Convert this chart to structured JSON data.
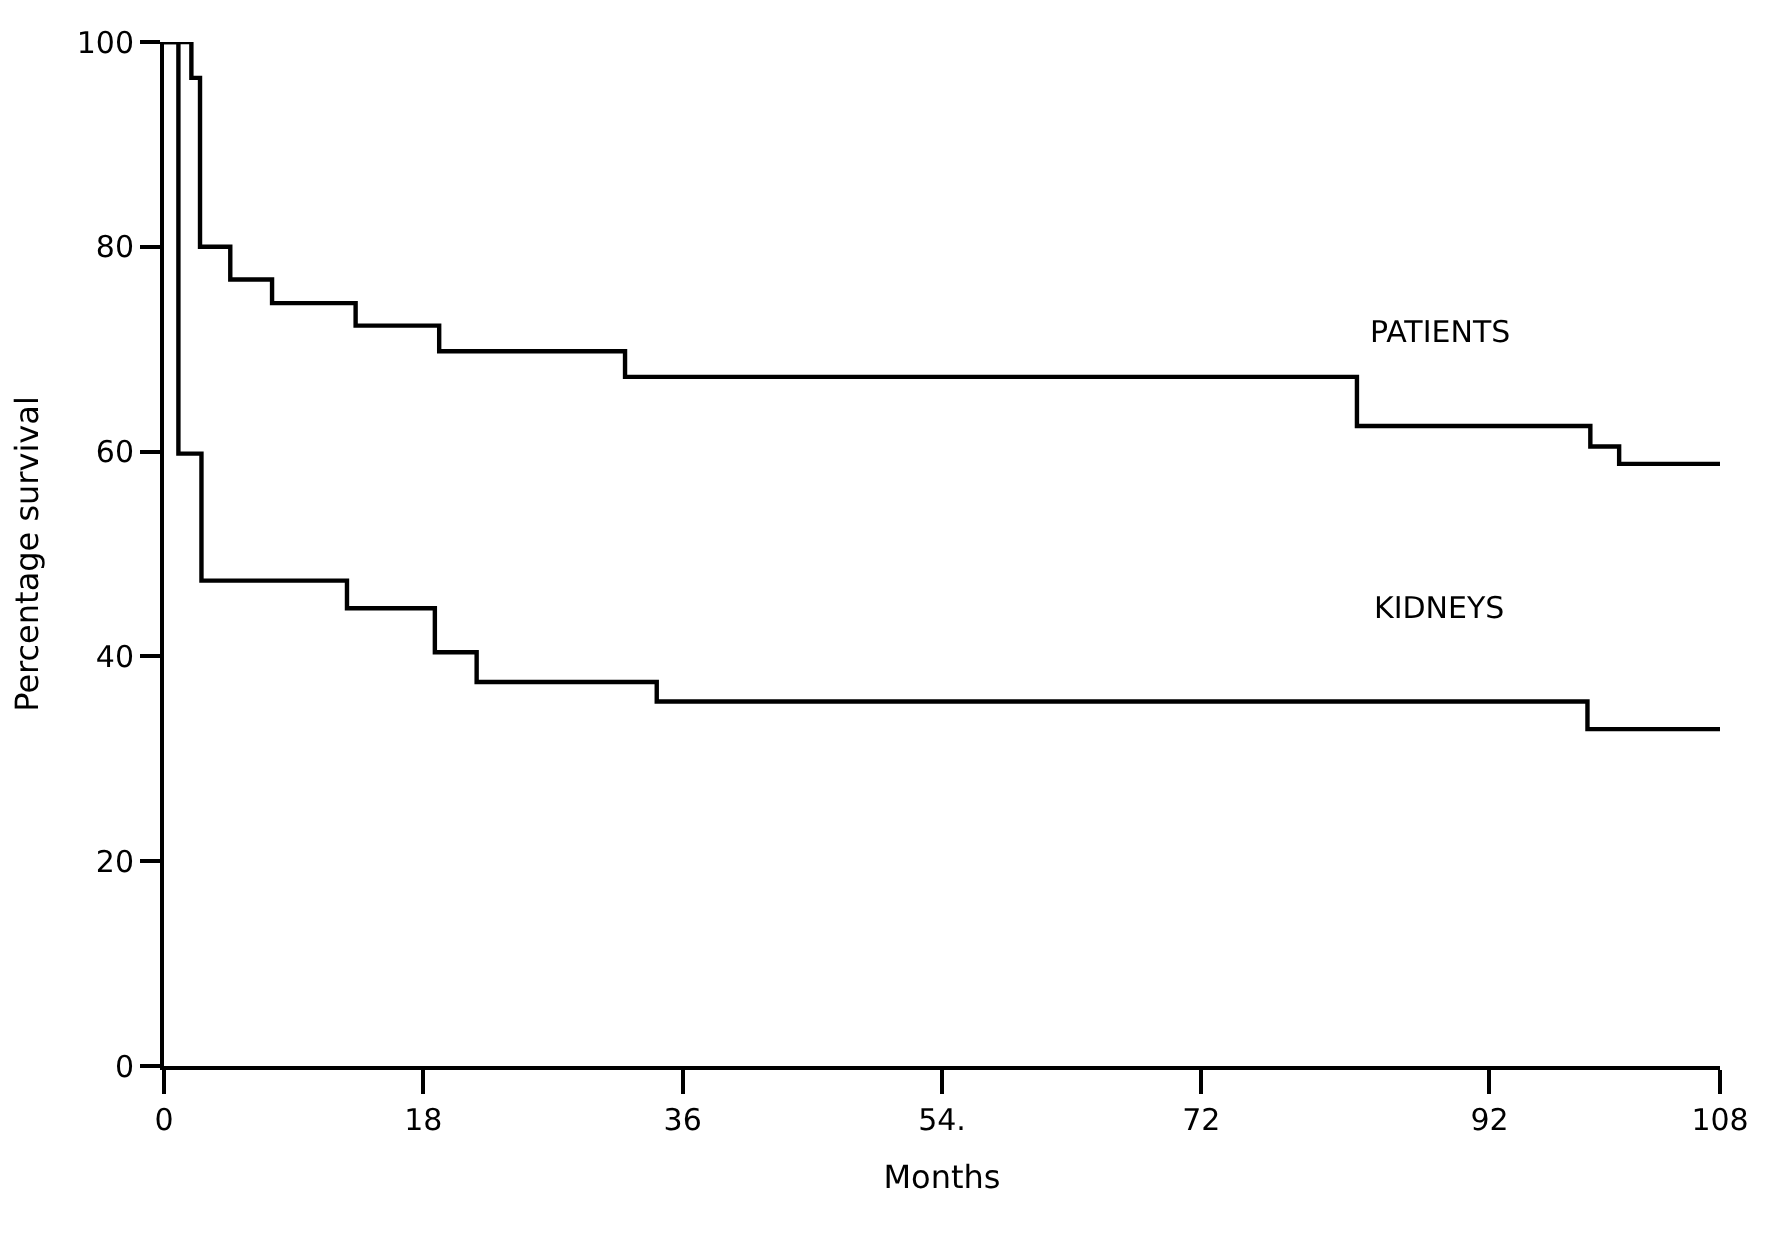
{
  "chart_data": {
    "type": "step",
    "xlabel": "Months",
    "ylabel": "Percentage survival",
    "xlim": [
      0,
      108
    ],
    "xticks": [
      0,
      18,
      36,
      {
        "value": 54,
        "label": "54."
      },
      72,
      92,
      108
    ],
    "ylim": [
      0,
      100
    ],
    "yticks": [
      0,
      20,
      40,
      60,
      80,
      100
    ],
    "legend": false,
    "series": [
      {
        "name": "PATIENTS",
        "color": "#000000",
        "x": [
          0,
          1.9,
          2.5,
          4.6,
          7.5,
          13.3,
          19.1,
          32,
          82.8,
          99,
          101,
          108
        ],
        "values": [
          100,
          96.5,
          80,
          76.8,
          74.5,
          72.3,
          69.8,
          67.3,
          62.5,
          60.5,
          58.8,
          58.8
        ]
      },
      {
        "name": "KIDNEYS",
        "color": "#000000",
        "x": [
          0,
          1,
          2.6,
          12.7,
          18.8,
          21.7,
          34.2,
          98.8,
          108
        ],
        "values": [
          100,
          59.8,
          47.4,
          44.7,
          40.4,
          37.5,
          35.6,
          32.9,
          32.9
        ]
      }
    ]
  }
}
